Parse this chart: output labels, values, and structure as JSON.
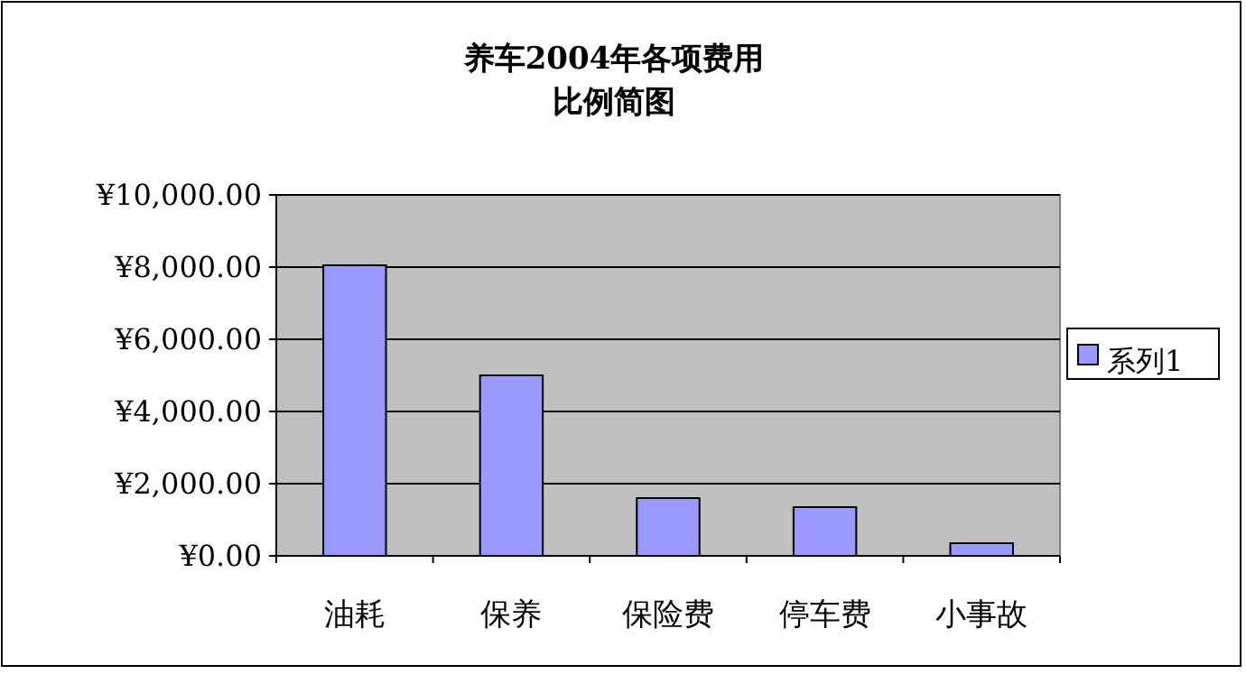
{
  "chart_data": {
    "type": "bar",
    "title": "养车2004年各项费用比例简图",
    "categories": [
      "油耗",
      "保养",
      "保险费",
      "停车费",
      "小事故"
    ],
    "series": [
      {
        "name": "系列1",
        "color": "#9999ff",
        "values": [
          8050,
          5000,
          1600,
          1350,
          350
        ]
      }
    ],
    "ylim": [
      0,
      10000
    ],
    "yticks": [
      {
        "value": 0,
        "label": "¥0.00"
      },
      {
        "value": 2000,
        "label": "¥2,000.00"
      },
      {
        "value": 4000,
        "label": "¥4,000.00"
      },
      {
        "value": 6000,
        "label": "¥6,000.00"
      },
      {
        "value": 8000,
        "label": "¥8,000.00"
      },
      {
        "value": 10000,
        "label": "¥10,000.00"
      }
    ],
    "grid": "y",
    "legend": "right"
  }
}
